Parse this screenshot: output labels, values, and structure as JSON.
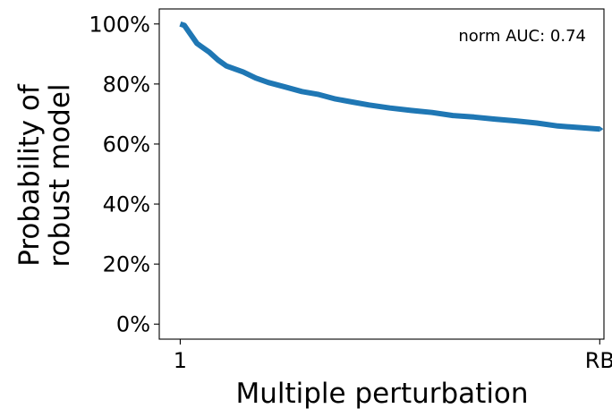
{
  "chart_data": {
    "type": "line",
    "xlabel": "Multiple perturbation",
    "ylabel_lines": [
      "Probability of",
      "robust model"
    ],
    "annotation": "norm AUC: 0.74",
    "x_ticks": [
      {
        "pos": 0,
        "label": "1"
      },
      {
        "pos": 1,
        "label": "RB"
      }
    ],
    "y_ticks": [
      {
        "value": 0,
        "label": "0%"
      },
      {
        "value": 20,
        "label": "20%"
      },
      {
        "value": 40,
        "label": "40%"
      },
      {
        "value": 60,
        "label": "60%"
      },
      {
        "value": 80,
        "label": "80%"
      },
      {
        "value": 100,
        "label": "100%"
      }
    ],
    "xlim": [
      -0.05,
      1.01
    ],
    "ylim": [
      -5,
      105
    ],
    "grid": false,
    "series": [
      {
        "color": "#1f77b4",
        "x": [
          0.0,
          0.01,
          0.02,
          0.03,
          0.04,
          0.05,
          0.07,
          0.09,
          0.11,
          0.13,
          0.15,
          0.18,
          0.21,
          0.25,
          0.29,
          0.33,
          0.37,
          0.41,
          0.45,
          0.5,
          0.55,
          0.6,
          0.65,
          0.7,
          0.75,
          0.8,
          0.85,
          0.9,
          0.95,
          1.0
        ],
        "y": [
          100,
          99.5,
          97.5,
          95.5,
          93.5,
          92.5,
          90.5,
          88,
          86,
          85,
          84,
          82,
          80.5,
          79,
          77.5,
          76.5,
          75,
          74,
          73,
          72,
          71.2,
          70.5,
          69.5,
          69,
          68.3,
          67.7,
          67,
          66,
          65.5,
          65
        ]
      }
    ]
  }
}
